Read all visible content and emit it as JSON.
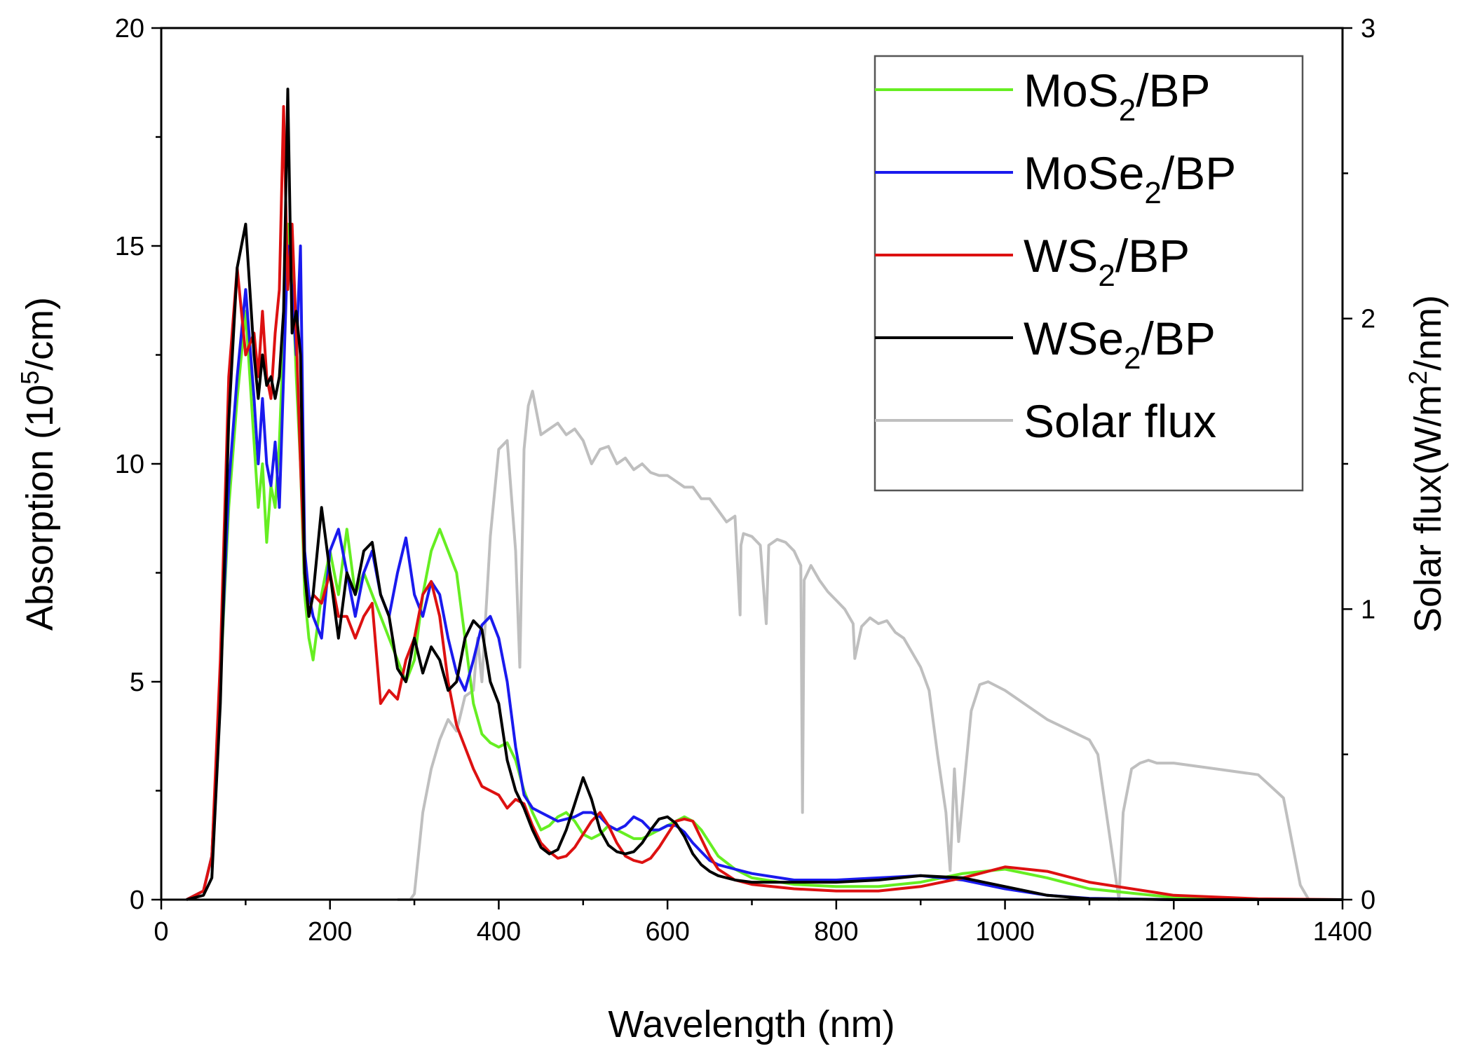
{
  "chart_data": {
    "type": "line",
    "title": "",
    "xlabel": "Wavelength (nm)",
    "ylabel": {
      "prefix": "Absorption (10",
      "sup": "5",
      "suffix": "/cm)"
    },
    "y2label": {
      "prefix": "Solar flux(W/m",
      "sup": "2",
      "suffix": "/nm)"
    },
    "xlim": [
      0,
      1400
    ],
    "ylim": [
      0,
      20
    ],
    "y2lim": [
      0,
      3
    ],
    "xticks": [
      "0",
      "200",
      "400",
      "600",
      "800",
      "1000",
      "1200",
      "1400"
    ],
    "yticks": [
      "0",
      "5",
      "10",
      "15",
      "20"
    ],
    "y2ticks": [
      "0",
      "1",
      "2",
      "3"
    ],
    "legend_position": "top-right",
    "series": [
      {
        "name": "MoS2/BP",
        "label": {
          "base": "MoS",
          "sub": "2",
          "rest": "/BP"
        },
        "color": "#66ee22",
        "axis": "left",
        "x": [
          30,
          50,
          60,
          70,
          80,
          90,
          100,
          110,
          115,
          120,
          125,
          130,
          135,
          140,
          145,
          150,
          155,
          160,
          165,
          170,
          175,
          180,
          190,
          200,
          210,
          220,
          230,
          240,
          250,
          260,
          270,
          280,
          290,
          300,
          310,
          320,
          330,
          340,
          350,
          360,
          370,
          380,
          390,
          400,
          410,
          420,
          430,
          440,
          450,
          460,
          470,
          480,
          490,
          500,
          510,
          520,
          530,
          540,
          550,
          560,
          570,
          580,
          590,
          600,
          610,
          620,
          630,
          640,
          650,
          660,
          680,
          700,
          750,
          800,
          850,
          900,
          950,
          1000,
          1050,
          1100,
          1200,
          1300,
          1400
        ],
        "y": [
          0,
          0.2,
          1.0,
          5.0,
          9.0,
          11.5,
          13.5,
          10.5,
          9.0,
          10.0,
          8.2,
          9.5,
          9.0,
          10.5,
          13.0,
          15.5,
          14.5,
          12.0,
          10.0,
          7.0,
          6.0,
          5.5,
          7.0,
          8.0,
          7.0,
          8.5,
          7.0,
          7.5,
          7.0,
          6.5,
          6.0,
          5.5,
          5.0,
          5.5,
          7.0,
          8.0,
          8.5,
          8.0,
          7.5,
          6.0,
          4.5,
          3.8,
          3.6,
          3.5,
          3.6,
          3.2,
          2.5,
          2.0,
          1.6,
          1.7,
          1.9,
          2.0,
          1.8,
          1.5,
          1.4,
          1.5,
          1.7,
          1.6,
          1.5,
          1.4,
          1.4,
          1.5,
          1.6,
          1.7,
          1.8,
          1.9,
          1.8,
          1.6,
          1.3,
          1.0,
          0.7,
          0.5,
          0.35,
          0.3,
          0.3,
          0.4,
          0.6,
          0.7,
          0.5,
          0.25,
          0.05,
          0,
          0
        ]
      },
      {
        "name": "MoSe2/BP",
        "label": {
          "base": "MoSe",
          "sub": "2",
          "rest": "/BP"
        },
        "color": "#1a1aee",
        "axis": "left",
        "x": [
          30,
          50,
          60,
          70,
          80,
          90,
          100,
          110,
          115,
          120,
          125,
          130,
          135,
          140,
          145,
          150,
          155,
          160,
          165,
          170,
          175,
          180,
          190,
          200,
          210,
          220,
          230,
          240,
          250,
          260,
          270,
          280,
          290,
          300,
          310,
          320,
          330,
          340,
          350,
          360,
          370,
          380,
          390,
          400,
          410,
          420,
          430,
          440,
          450,
          460,
          470,
          480,
          490,
          500,
          510,
          520,
          530,
          540,
          550,
          560,
          570,
          580,
          590,
          600,
          610,
          620,
          630,
          640,
          650,
          660,
          680,
          700,
          750,
          800,
          850,
          900,
          950,
          1000,
          1050,
          1100,
          1200,
          1300,
          1400
        ],
        "y": [
          0,
          0.2,
          1.0,
          5.0,
          9.5,
          12.0,
          14.0,
          11.5,
          10.0,
          11.5,
          10.0,
          9.5,
          10.5,
          9.0,
          12.0,
          15.0,
          14.0,
          12.5,
          15.0,
          8.0,
          7.0,
          6.5,
          6.0,
          8.0,
          8.5,
          7.5,
          6.5,
          7.5,
          8.0,
          7.0,
          6.5,
          7.5,
          8.3,
          7.0,
          6.5,
          7.3,
          7.0,
          6.0,
          5.2,
          4.8,
          5.5,
          6.3,
          6.5,
          6.0,
          5.0,
          3.5,
          2.4,
          2.1,
          2.0,
          1.9,
          1.8,
          1.85,
          1.9,
          2.0,
          2.0,
          1.9,
          1.7,
          1.6,
          1.7,
          1.9,
          1.8,
          1.6,
          1.6,
          1.7,
          1.7,
          1.55,
          1.3,
          1.1,
          0.9,
          0.8,
          0.7,
          0.6,
          0.45,
          0.45,
          0.5,
          0.55,
          0.45,
          0.25,
          0.1,
          0.03,
          0,
          0,
          0
        ]
      },
      {
        "name": "WS2/BP",
        "label": {
          "base": "WS",
          "sub": "2",
          "rest": "/BP"
        },
        "color": "#dd1111",
        "axis": "left",
        "x": [
          30,
          50,
          60,
          70,
          80,
          90,
          100,
          110,
          115,
          120,
          125,
          130,
          135,
          140,
          145,
          150,
          155,
          160,
          165,
          170,
          175,
          180,
          190,
          200,
          210,
          220,
          230,
          240,
          250,
          260,
          270,
          280,
          290,
          300,
          310,
          320,
          330,
          340,
          350,
          360,
          370,
          380,
          390,
          400,
          410,
          420,
          430,
          440,
          450,
          460,
          470,
          480,
          490,
          500,
          510,
          520,
          530,
          540,
          550,
          560,
          570,
          580,
          590,
          600,
          610,
          620,
          630,
          640,
          650,
          660,
          680,
          700,
          750,
          800,
          850,
          900,
          950,
          1000,
          1050,
          1100,
          1200,
          1300,
          1400
        ],
        "y": [
          0,
          0.2,
          1.0,
          5.5,
          12.0,
          14.5,
          12.5,
          13.0,
          12.0,
          13.5,
          12.0,
          11.5,
          13.0,
          14.0,
          18.2,
          14.0,
          15.5,
          13.0,
          10.0,
          7.5,
          6.5,
          7.0,
          6.8,
          7.5,
          6.5,
          6.5,
          6.0,
          6.5,
          6.8,
          4.5,
          4.8,
          4.6,
          5.5,
          6.0,
          7.0,
          7.3,
          6.5,
          5.0,
          4.0,
          3.5,
          3.0,
          2.6,
          2.5,
          2.4,
          2.1,
          2.3,
          2.2,
          1.7,
          1.3,
          1.1,
          0.95,
          1.0,
          1.2,
          1.5,
          1.8,
          2.0,
          1.7,
          1.3,
          1.0,
          0.9,
          0.85,
          0.95,
          1.2,
          1.5,
          1.8,
          1.85,
          1.8,
          1.4,
          1.0,
          0.7,
          0.45,
          0.35,
          0.25,
          0.2,
          0.2,
          0.3,
          0.5,
          0.75,
          0.65,
          0.4,
          0.1,
          0.02,
          0
        ]
      },
      {
        "name": "WSe2/BP",
        "label": {
          "base": "WSe",
          "sub": "2",
          "rest": "/BP"
        },
        "color": "#000000",
        "axis": "left",
        "x": [
          30,
          50,
          60,
          70,
          80,
          90,
          100,
          110,
          115,
          120,
          125,
          130,
          135,
          140,
          145,
          150,
          155,
          160,
          165,
          170,
          175,
          180,
          190,
          200,
          210,
          220,
          230,
          240,
          250,
          260,
          270,
          280,
          290,
          300,
          310,
          320,
          330,
          340,
          350,
          360,
          370,
          380,
          390,
          400,
          410,
          420,
          430,
          440,
          450,
          460,
          470,
          480,
          490,
          500,
          510,
          520,
          530,
          540,
          550,
          560,
          570,
          580,
          590,
          600,
          610,
          620,
          630,
          640,
          650,
          660,
          680,
          700,
          750,
          800,
          850,
          900,
          950,
          1000,
          1050,
          1100,
          1200,
          1300,
          1400
        ],
        "y": [
          0,
          0.1,
          0.5,
          4.5,
          11.0,
          14.5,
          15.5,
          12.5,
          11.5,
          12.5,
          11.8,
          12.0,
          11.5,
          12.0,
          13.5,
          18.6,
          13.0,
          13.5,
          12.5,
          7.5,
          6.5,
          7.0,
          9.0,
          7.5,
          6.0,
          7.5,
          7.0,
          8.0,
          8.2,
          7.0,
          6.5,
          5.3,
          5.0,
          6.0,
          5.2,
          5.8,
          5.5,
          4.8,
          5.0,
          6.0,
          6.4,
          6.2,
          5.0,
          4.5,
          3.2,
          2.5,
          2.1,
          1.6,
          1.2,
          1.05,
          1.15,
          1.6,
          2.2,
          2.8,
          2.3,
          1.6,
          1.25,
          1.1,
          1.05,
          1.1,
          1.3,
          1.6,
          1.85,
          1.9,
          1.75,
          1.45,
          1.05,
          0.8,
          0.65,
          0.55,
          0.45,
          0.4,
          0.4,
          0.4,
          0.45,
          0.55,
          0.5,
          0.3,
          0.1,
          0.02,
          0,
          0,
          0
        ]
      },
      {
        "name": "Solar flux",
        "label": {
          "base": "Solar flux",
          "sub": "",
          "rest": ""
        },
        "color": "#bfbfbf",
        "axis": "right",
        "x": [
          280,
          295,
          300,
          310,
          320,
          330,
          340,
          350,
          360,
          370,
          375,
          380,
          390,
          400,
          410,
          420,
          425,
          430,
          435,
          440,
          450,
          460,
          470,
          480,
          490,
          500,
          510,
          520,
          530,
          540,
          550,
          560,
          570,
          580,
          590,
          600,
          610,
          620,
          630,
          640,
          650,
          660,
          670,
          680,
          686,
          687,
          690,
          700,
          710,
          717,
          720,
          730,
          740,
          750,
          758,
          760,
          762,
          770,
          780,
          790,
          800,
          810,
          820,
          822,
          830,
          840,
          850,
          860,
          870,
          880,
          890,
          900,
          910,
          920,
          930,
          935,
          940,
          945,
          950,
          955,
          960,
          970,
          980,
          1000,
          1050,
          1100,
          1110,
          1120,
          1130,
          1135,
          1140,
          1150,
          1160,
          1170,
          1180,
          1200,
          1250,
          1300,
          1330,
          1350,
          1360
        ],
        "y": [
          0,
          0,
          0.02,
          0.3,
          0.45,
          0.55,
          0.62,
          0.58,
          0.7,
          0.72,
          0.9,
          0.75,
          1.25,
          1.55,
          1.58,
          1.2,
          0.8,
          1.55,
          1.7,
          1.75,
          1.6,
          1.62,
          1.64,
          1.6,
          1.62,
          1.58,
          1.5,
          1.55,
          1.56,
          1.5,
          1.52,
          1.48,
          1.5,
          1.47,
          1.46,
          1.46,
          1.44,
          1.42,
          1.42,
          1.38,
          1.38,
          1.34,
          1.3,
          1.32,
          0.98,
          1.22,
          1.26,
          1.25,
          1.22,
          0.95,
          1.22,
          1.24,
          1.23,
          1.2,
          1.15,
          0.3,
          1.1,
          1.15,
          1.1,
          1.06,
          1.03,
          1.0,
          0.95,
          0.83,
          0.94,
          0.97,
          0.95,
          0.96,
          0.92,
          0.9,
          0.85,
          0.8,
          0.72,
          0.5,
          0.3,
          0.1,
          0.45,
          0.2,
          0.35,
          0.5,
          0.65,
          0.74,
          0.75,
          0.72,
          0.62,
          0.55,
          0.5,
          0.3,
          0.1,
          0.0,
          0.3,
          0.45,
          0.47,
          0.48,
          0.47,
          0.47,
          0.45,
          0.43,
          0.35,
          0.05,
          0.0
        ]
      }
    ]
  }
}
